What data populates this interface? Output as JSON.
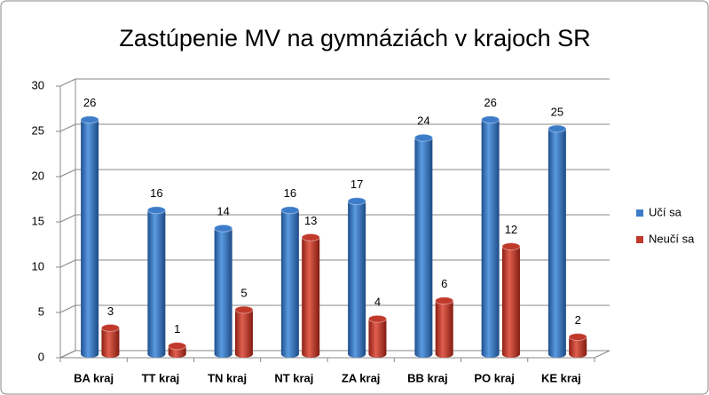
{
  "chart_data": {
    "type": "bar3d",
    "title": "Zastúpenie MV na gymnáziách v krajoch SR",
    "categories": [
      "BA kraj",
      "TT kraj",
      "TN kraj",
      "NT kraj",
      "ZA kraj",
      "BB kraj",
      "PO kraj",
      "KE kraj"
    ],
    "series": [
      {
        "name": "Učí sa",
        "color": "#3d7cc9",
        "values": [
          26,
          16,
          14,
          16,
          17,
          24,
          26,
          25
        ]
      },
      {
        "name": "Neučí sa",
        "color": "#c0392b",
        "values": [
          3,
          1,
          5,
          13,
          4,
          6,
          12,
          2
        ]
      }
    ],
    "ylim": [
      0,
      30
    ],
    "yticks": [
      0,
      5,
      10,
      15,
      20,
      25,
      30
    ],
    "grid": true,
    "legend": "right"
  }
}
